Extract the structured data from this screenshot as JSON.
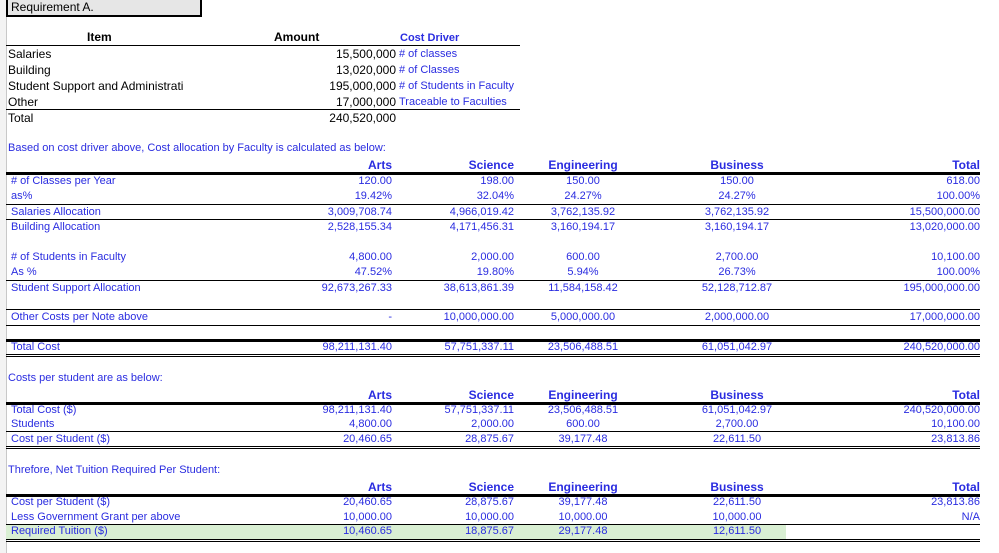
{
  "requirement_label": "Requirement A.",
  "cost_table": {
    "headers": {
      "item": "Item",
      "amount": "Amount",
      "driver": "Cost Driver"
    },
    "rows": [
      {
        "item": "Salaries",
        "amount": "15,500,000",
        "driver": "# of classes"
      },
      {
        "item": "Building",
        "amount": "13,020,000",
        "driver": "# of Classes"
      },
      {
        "item": "Student Support and Administrati",
        "amount": "195,000,000",
        "driver": "# of Students in Faculty"
      },
      {
        "item": "Other",
        "amount": "17,000,000",
        "driver": "Traceable to Faculties"
      }
    ],
    "total": {
      "item": "Total",
      "amount": "240,520,000"
    }
  },
  "faculties": [
    "Arts",
    "Science",
    "Engineering",
    "Business",
    "Total"
  ],
  "allocation": {
    "intro": "Based on cost driver above, Cost allocation by Faculty is calculated as below:",
    "rows": [
      {
        "label": "# of Classes per Year",
        "values": [
          "120.00",
          "198.00",
          "150.00",
          "150.00",
          "618.00"
        ]
      },
      {
        "label": "as%",
        "values": [
          "19.42%",
          "32.04%",
          "24.27%",
          "24.27%",
          "100.00%"
        ]
      },
      {
        "label": "Salaries Allocation",
        "values": [
          "3,009,708.74",
          "4,966,019.42",
          "3,762,135.92",
          "3,762,135.92",
          "15,500,000.00"
        ]
      },
      {
        "label": "Building Allocation",
        "values": [
          "2,528,155.34",
          "4,171,456.31",
          "3,160,194.17",
          "3,160,194.17",
          "13,020,000.00"
        ]
      },
      {
        "label": "# of Students in Faculty",
        "values": [
          "4,800.00",
          "2,000.00",
          "600.00",
          "2,700.00",
          "10,100.00"
        ]
      },
      {
        "label": "As %",
        "values": [
          "47.52%",
          "19.80%",
          "5.94%",
          "26.73%",
          "100.00%"
        ]
      },
      {
        "label": "Student Support Allocation",
        "values": [
          "92,673,267.33",
          "38,613,861.39",
          "11,584,158.42",
          "52,128,712.87",
          "195,000,000.00"
        ]
      },
      {
        "label": "Other Costs per Note above",
        "values": [
          "-",
          "10,000,000.00",
          "5,000,000.00",
          "2,000,000.00",
          "17,000,000.00"
        ]
      },
      {
        "label": "Total Cost",
        "values": [
          "98,211,131.40",
          "57,751,337.11",
          "23,506,488.51",
          "61,051,042.97",
          "240,520,000.00"
        ]
      }
    ]
  },
  "per_student": {
    "intro": "Costs per student are as below:",
    "rows": [
      {
        "label": "Total Cost ($)",
        "values": [
          "98,211,131.40",
          "57,751,337.11",
          "23,506,488.51",
          "61,051,042.97",
          "240,520,000.00"
        ]
      },
      {
        "label": "Students",
        "values": [
          "4,800.00",
          "2,000.00",
          "600.00",
          "2,700.00",
          "10,100.00"
        ]
      },
      {
        "label": "Cost per Student ($)",
        "values": [
          "20,460.65",
          "28,875.67",
          "39,177.48",
          "22,611.50",
          "23,813.86"
        ]
      }
    ]
  },
  "tuition": {
    "intro": "Threfore, Net Tuition Required Per Student:",
    "rows": [
      {
        "label": "Cost per Student ($)",
        "values": [
          "20,460.65",
          "28,875.67",
          "39,177.48",
          "22,611.50",
          "23,813.86"
        ]
      },
      {
        "label": "Less Government Grant per above",
        "values": [
          "10,000.00",
          "10,000.00",
          "10,000.00",
          "10,000.00",
          "N/A"
        ]
      },
      {
        "label": "Required Tuition ($)",
        "values": [
          "10,460.65",
          "18,875.67",
          "29,177.48",
          "12,611.50",
          ""
        ]
      }
    ]
  },
  "colors": {
    "text_blue": "#2a2ce0",
    "highlight_green": "#d9efd3",
    "title_bg": "#e6e6e6"
  }
}
